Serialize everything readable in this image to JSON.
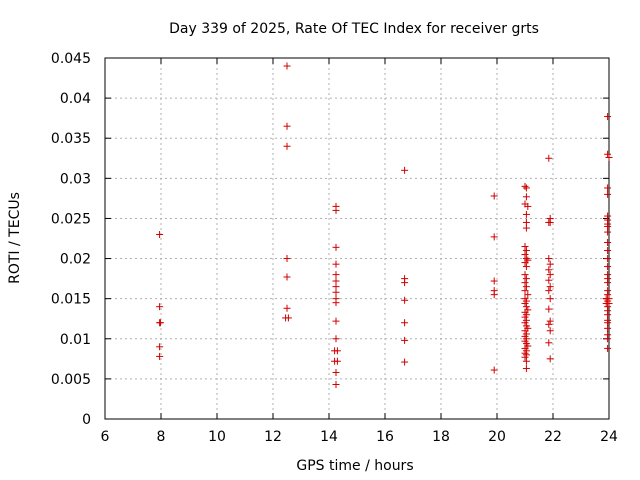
{
  "chart_data": {
    "type": "scatter",
    "title": "Day 339 of 2025, Rate Of TEC Index for receiver grts",
    "xlabel": "GPS time / hours",
    "ylabel": "ROTI / TECUs",
    "xlim": [
      6,
      24
    ],
    "ylim": [
      0,
      0.045
    ],
    "x_ticks": [
      "6",
      "8",
      "10",
      "12",
      "14",
      "16",
      "18",
      "20",
      "22",
      "24"
    ],
    "y_ticks": [
      "0",
      "0.005",
      "0.01",
      "0.015",
      "0.02",
      "0.025",
      "0.03",
      "0.035",
      "0.04",
      "0.045"
    ],
    "grid": true,
    "marker_color": "#d00000",
    "series": [
      {
        "points": [
          [
            7.95,
            0.023
          ],
          [
            7.95,
            0.014
          ],
          [
            7.95,
            0.012
          ],
          [
            7.98,
            0.012
          ],
          [
            7.95,
            0.009
          ],
          [
            7.95,
            0.0078
          ],
          [
            12.5,
            0.044
          ],
          [
            12.5,
            0.0365
          ],
          [
            12.5,
            0.034
          ],
          [
            12.5,
            0.02
          ],
          [
            12.5,
            0.0177
          ],
          [
            12.5,
            0.0138
          ],
          [
            12.45,
            0.0126
          ],
          [
            12.55,
            0.0126
          ],
          [
            14.25,
            0.0265
          ],
          [
            14.25,
            0.026
          ],
          [
            14.25,
            0.0214
          ],
          [
            14.25,
            0.0193
          ],
          [
            14.25,
            0.018
          ],
          [
            14.25,
            0.0172
          ],
          [
            14.25,
            0.0165
          ],
          [
            14.25,
            0.0158
          ],
          [
            14.25,
            0.015
          ],
          [
            14.25,
            0.0145
          ],
          [
            14.25,
            0.0122
          ],
          [
            14.25,
            0.01
          ],
          [
            14.2,
            0.0085
          ],
          [
            14.3,
            0.0085
          ],
          [
            14.2,
            0.0072
          ],
          [
            14.3,
            0.0072
          ],
          [
            14.25,
            0.0058
          ],
          [
            14.25,
            0.0043
          ],
          [
            16.7,
            0.031
          ],
          [
            16.7,
            0.0175
          ],
          [
            16.7,
            0.017
          ],
          [
            16.7,
            0.0148
          ],
          [
            16.7,
            0.012
          ],
          [
            16.7,
            0.0098
          ],
          [
            16.7,
            0.0071
          ],
          [
            19.9,
            0.0278
          ],
          [
            19.9,
            0.0227
          ],
          [
            19.9,
            0.0172
          ],
          [
            19.9,
            0.016
          ],
          [
            19.9,
            0.0155
          ],
          [
            19.9,
            0.0061
          ],
          [
            21.0,
            0.029
          ],
          [
            21.05,
            0.0288
          ],
          [
            21.05,
            0.0277
          ],
          [
            21.0,
            0.0268
          ],
          [
            21.1,
            0.0265
          ],
          [
            21.05,
            0.0255
          ],
          [
            21.05,
            0.0245
          ],
          [
            21.05,
            0.0238
          ],
          [
            21.0,
            0.0215
          ],
          [
            21.05,
            0.021
          ],
          [
            21.0,
            0.0205
          ],
          [
            21.05,
            0.02
          ],
          [
            21.1,
            0.0198
          ],
          [
            21.0,
            0.0195
          ],
          [
            21.05,
            0.019
          ],
          [
            21.0,
            0.018
          ],
          [
            21.05,
            0.0175
          ],
          [
            21.0,
            0.017
          ],
          [
            21.05,
            0.0165
          ],
          [
            21.0,
            0.016
          ],
          [
            21.1,
            0.0155
          ],
          [
            21.0,
            0.015
          ],
          [
            21.05,
            0.0147
          ],
          [
            21.0,
            0.0144
          ],
          [
            21.05,
            0.014
          ],
          [
            21.1,
            0.0136
          ],
          [
            21.0,
            0.0133
          ],
          [
            21.05,
            0.013
          ],
          [
            21.0,
            0.0127
          ],
          [
            21.05,
            0.0123
          ],
          [
            21.0,
            0.012
          ],
          [
            21.05,
            0.0116
          ],
          [
            21.1,
            0.0113
          ],
          [
            21.0,
            0.011
          ],
          [
            21.05,
            0.0106
          ],
          [
            21.0,
            0.0103
          ],
          [
            21.05,
            0.01
          ],
          [
            21.0,
            0.0097
          ],
          [
            21.05,
            0.0094
          ],
          [
            21.1,
            0.0091
          ],
          [
            21.0,
            0.0088
          ],
          [
            21.05,
            0.0085
          ],
          [
            21.0,
            0.0082
          ],
          [
            21.05,
            0.008
          ],
          [
            21.0,
            0.0077
          ],
          [
            21.05,
            0.0072
          ],
          [
            21.05,
            0.0063
          ],
          [
            21.85,
            0.0325
          ],
          [
            21.9,
            0.025
          ],
          [
            21.85,
            0.0245
          ],
          [
            21.9,
            0.0245
          ],
          [
            21.85,
            0.02
          ],
          [
            21.9,
            0.0193
          ],
          [
            21.85,
            0.0186
          ],
          [
            21.9,
            0.018
          ],
          [
            21.85,
            0.0173
          ],
          [
            21.9,
            0.0165
          ],
          [
            21.85,
            0.016
          ],
          [
            21.9,
            0.015
          ],
          [
            21.85,
            0.0137
          ],
          [
            21.9,
            0.0122
          ],
          [
            21.85,
            0.0118
          ],
          [
            21.9,
            0.011
          ],
          [
            21.85,
            0.0095
          ],
          [
            21.9,
            0.0075
          ],
          [
            23.95,
            0.0377
          ],
          [
            23.95,
            0.033
          ],
          [
            24.0,
            0.0326
          ],
          [
            23.95,
            0.0288
          ],
          [
            23.95,
            0.028
          ],
          [
            23.95,
            0.0253
          ],
          [
            23.95,
            0.0248
          ],
          [
            23.95,
            0.0243
          ],
          [
            23.95,
            0.024
          ],
          [
            23.95,
            0.0233
          ],
          [
            23.95,
            0.022
          ],
          [
            23.95,
            0.021
          ],
          [
            23.95,
            0.02
          ],
          [
            23.95,
            0.019
          ],
          [
            23.95,
            0.018
          ],
          [
            23.95,
            0.0175
          ],
          [
            23.95,
            0.017
          ],
          [
            23.95,
            0.016
          ],
          [
            23.95,
            0.0155
          ],
          [
            23.9,
            0.015
          ],
          [
            24.0,
            0.015
          ],
          [
            23.95,
            0.0147
          ],
          [
            23.9,
            0.0144
          ],
          [
            24.0,
            0.0144
          ],
          [
            23.95,
            0.014
          ],
          [
            23.95,
            0.0135
          ],
          [
            23.95,
            0.013
          ],
          [
            23.95,
            0.0123
          ],
          [
            23.95,
            0.012
          ],
          [
            23.95,
            0.0113
          ],
          [
            23.95,
            0.0105
          ],
          [
            23.95,
            0.01
          ],
          [
            23.95,
            0.0088
          ]
        ]
      }
    ]
  }
}
